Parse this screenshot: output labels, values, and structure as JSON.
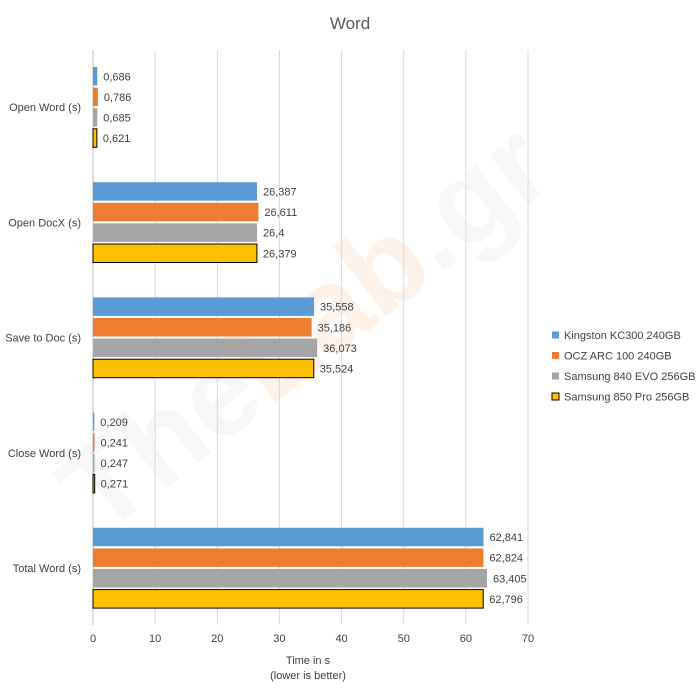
{
  "chart_data": {
    "type": "bar",
    "orientation": "horizontal",
    "title": "Word",
    "xlabel": "Time in s",
    "xlabel_sub": "(lower is better)",
    "xlim": [
      0,
      70
    ],
    "x_ticks": [
      "0",
      "10",
      "20",
      "30",
      "40",
      "50",
      "60",
      "70"
    ],
    "grid": true,
    "legend_position": "right",
    "categories": [
      "Open Word (s)",
      "Open DocX (s)",
      "Save to Doc (s)",
      "Close Word (s)",
      "Total Word (s)"
    ],
    "series": [
      {
        "name": "Kingston KC300 240GB",
        "color": "#5B9BD5",
        "values": [
          0.686,
          26.387,
          35.558,
          0.209,
          62.841
        ],
        "labels": [
          "0,686",
          "26,387",
          "35,558",
          "0,209",
          "62,841"
        ]
      },
      {
        "name": "OCZ ARC 100 240GB",
        "color": "#ED7D31",
        "values": [
          0.786,
          26.611,
          35.186,
          0.241,
          62.824
        ],
        "labels": [
          "0,786",
          "26,611",
          "35,186",
          "0,241",
          "62,824"
        ]
      },
      {
        "name": "Samsung 840 EVO 256GB",
        "color": "#A5A5A5",
        "values": [
          0.685,
          26.4,
          36.073,
          0.247,
          63.405
        ],
        "labels": [
          "0,685",
          "26,4",
          "36,073",
          "0,247",
          "63,405"
        ]
      },
      {
        "name": "Samsung 850 Pro 256GB",
        "color": "#FFC000",
        "border_color": "#000000",
        "values": [
          0.621,
          26.379,
          35.524,
          0.271,
          62.796
        ],
        "labels": [
          "0,621",
          "26,379",
          "35,524",
          "0,271",
          "62,796"
        ]
      }
    ],
    "watermark": "TheLab.gr"
  },
  "colors": {
    "grid": "#D9D9D9",
    "axis": "#BFBFBF",
    "text": "#404040",
    "title": "#595959"
  }
}
